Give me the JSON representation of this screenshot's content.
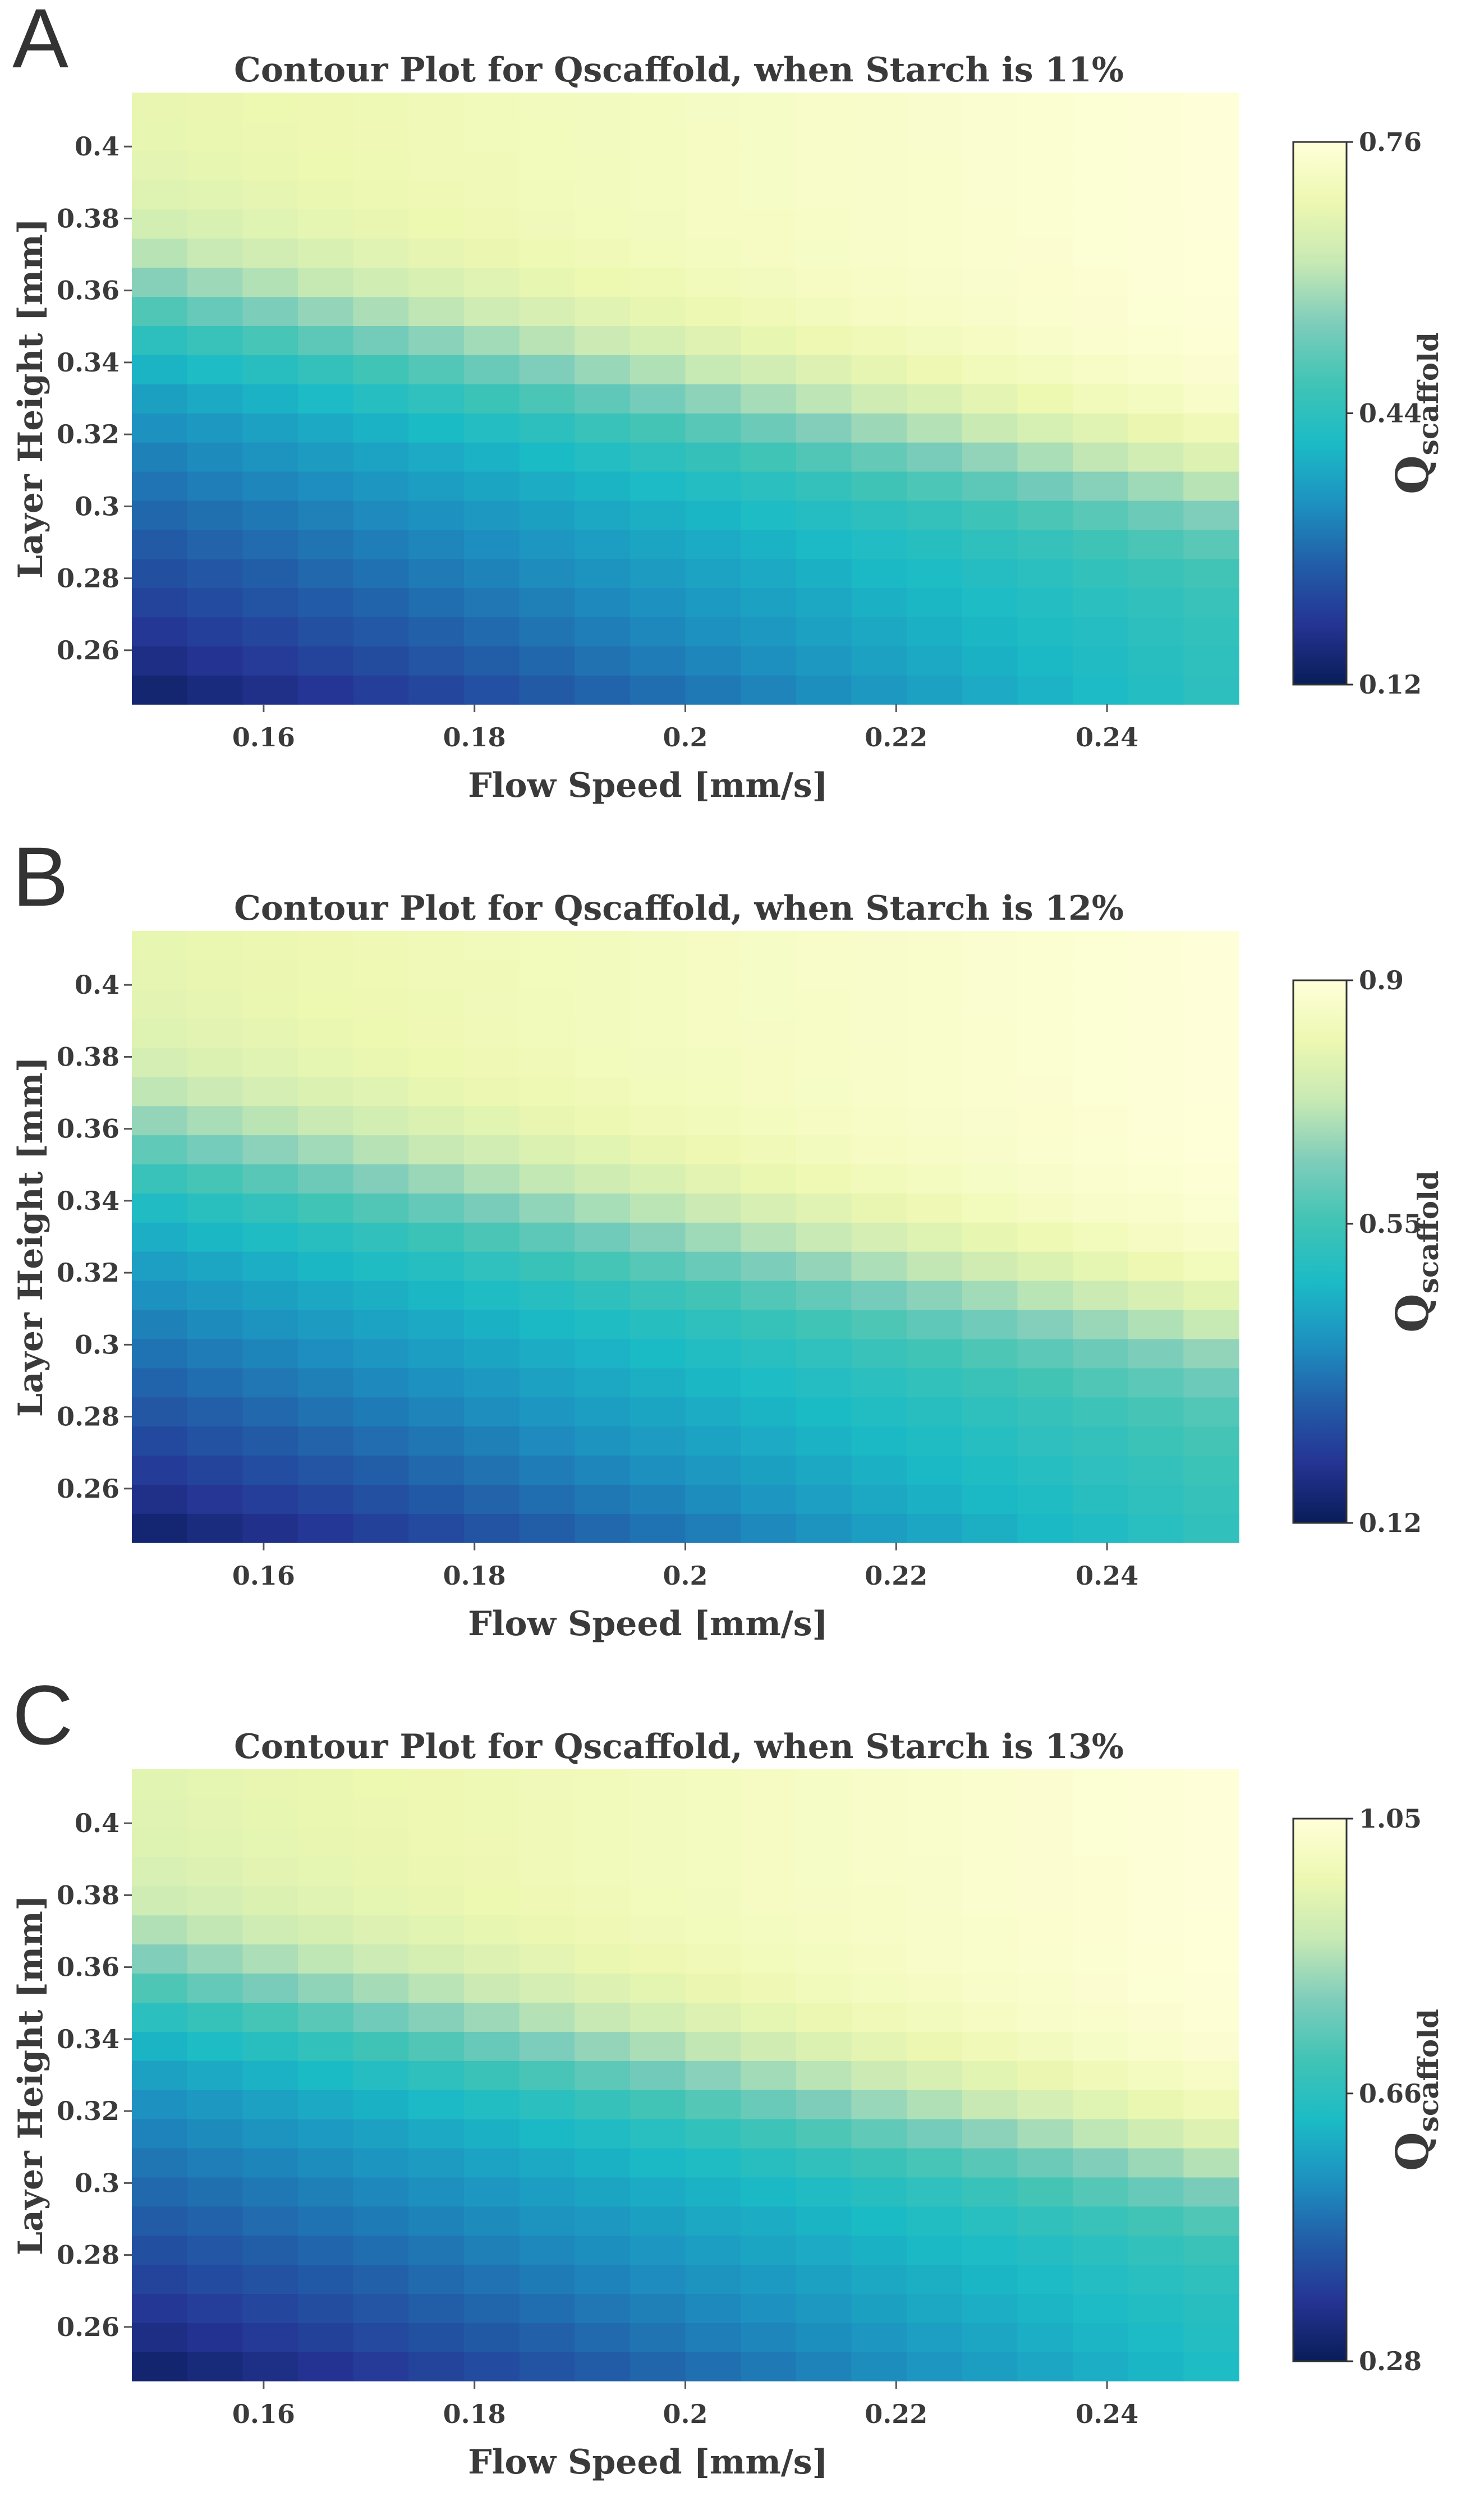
{
  "chart_data": [
    {
      "type": "heatmap",
      "panel_label": "A",
      "title": "Contour Plot for Qscaffold, when Starch is 11%",
      "xlabel": "Flow Speed [mm/s]",
      "ylabel": "Layer Height [mm]",
      "colorbar_label_main": "Q",
      "colorbar_label_sub": "scaffold",
      "xlim": [
        0.1475,
        0.2525
      ],
      "ylim": [
        0.245,
        0.415
      ],
      "x_ticks": [
        0.16,
        0.18,
        0.2,
        0.22,
        0.24
      ],
      "x_tick_labels": [
        "0.16",
        "0.18",
        "0.2",
        "0.22",
        "0.24"
      ],
      "y_ticks": [
        0.26,
        0.28,
        0.3,
        0.32,
        0.34,
        0.36,
        0.38,
        0.4
      ],
      "y_tick_labels": [
        "0.26",
        "0.28",
        "0.3",
        "0.32",
        "0.34",
        "0.36",
        "0.38",
        "0.4"
      ],
      "colorbar_ticks": [
        0.12,
        0.44,
        0.76
      ],
      "colorbar_tick_labels": [
        "0.12",
        "0.44",
        "0.76"
      ],
      "zmin": 0.12,
      "zmax": 0.76,
      "grid": {
        "nx": 20,
        "ny": 21
      },
      "surface": {
        "low_left": 0.12,
        "low_right": 0.44,
        "mid_left": 0.4,
        "mid_right": 0.46,
        "high_left": 0.68,
        "high_right": 0.76,
        "ridge_height_left": 0.362,
        "ridge_height_right": 0.305,
        "ridge_width": 0.03
      }
    },
    {
      "type": "heatmap",
      "panel_label": "B",
      "title": "Contour Plot for Qscaffold, when Starch is 12%",
      "xlabel": "Flow Speed [mm/s]",
      "ylabel": "Layer Height [mm]",
      "colorbar_label_main": "Q",
      "colorbar_label_sub": "scaffold",
      "xlim": [
        0.1475,
        0.2525
      ],
      "ylim": [
        0.245,
        0.415
      ],
      "x_ticks": [
        0.16,
        0.18,
        0.2,
        0.22,
        0.24
      ],
      "x_tick_labels": [
        "0.16",
        "0.18",
        "0.2",
        "0.22",
        "0.24"
      ],
      "y_ticks": [
        0.26,
        0.28,
        0.3,
        0.32,
        0.34,
        0.36,
        0.38,
        0.4
      ],
      "y_tick_labels": [
        "0.26",
        "0.28",
        "0.3",
        "0.32",
        "0.34",
        "0.36",
        "0.38",
        "0.4"
      ],
      "colorbar_ticks": [
        0.12,
        0.55,
        0.9
      ],
      "colorbar_tick_labels": [
        "0.12",
        "0.55",
        "0.9"
      ],
      "zmin": 0.12,
      "zmax": 0.9,
      "grid": {
        "nx": 20,
        "ny": 21
      },
      "surface": {
        "low_left": 0.12,
        "low_right": 0.52,
        "mid_left": 0.5,
        "mid_right": 0.57,
        "high_left": 0.8,
        "high_right": 0.9,
        "ridge_height_left": 0.362,
        "ridge_height_right": 0.305,
        "ridge_width": 0.03
      }
    },
    {
      "type": "heatmap",
      "panel_label": "C",
      "title": "Contour Plot for Qscaffold, when Starch is 13%",
      "xlabel": "Flow Speed [mm/s]",
      "ylabel": "Layer Height [mm]",
      "colorbar_label_main": "Q",
      "colorbar_label_sub": "scaffold",
      "xlim": [
        0.1475,
        0.2525
      ],
      "ylim": [
        0.245,
        0.415
      ],
      "x_ticks": [
        0.16,
        0.18,
        0.2,
        0.22,
        0.24
      ],
      "x_tick_labels": [
        "0.16",
        "0.18",
        "0.2",
        "0.22",
        "0.24"
      ],
      "y_ticks": [
        0.26,
        0.28,
        0.3,
        0.32,
        0.34,
        0.36,
        0.38,
        0.4
      ],
      "y_tick_labels": [
        "0.26",
        "0.28",
        "0.3",
        "0.32",
        "0.34",
        "0.36",
        "0.38",
        "0.4"
      ],
      "colorbar_ticks": [
        0.28,
        0.66,
        1.05
      ],
      "colorbar_tick_labels": [
        "0.28",
        "0.66",
        "1.05"
      ],
      "zmin": 0.28,
      "zmax": 1.05,
      "grid": {
        "nx": 20,
        "ny": 21
      },
      "surface": {
        "low_left": 0.28,
        "low_right": 0.63,
        "mid_left": 0.62,
        "mid_right": 0.68,
        "high_left": 0.94,
        "high_right": 1.05,
        "ridge_height_left": 0.362,
        "ridge_height_right": 0.305,
        "ridge_width": 0.03
      }
    }
  ],
  "colormap": {
    "name": "YlGnBu",
    "stops": [
      "#081d58",
      "#253494",
      "#225ea8",
      "#1d91c0",
      "#1bbbc6",
      "#41c4b5",
      "#7fcdbb",
      "#c7e9b4",
      "#edf8b1",
      "#ffffd9"
    ]
  }
}
